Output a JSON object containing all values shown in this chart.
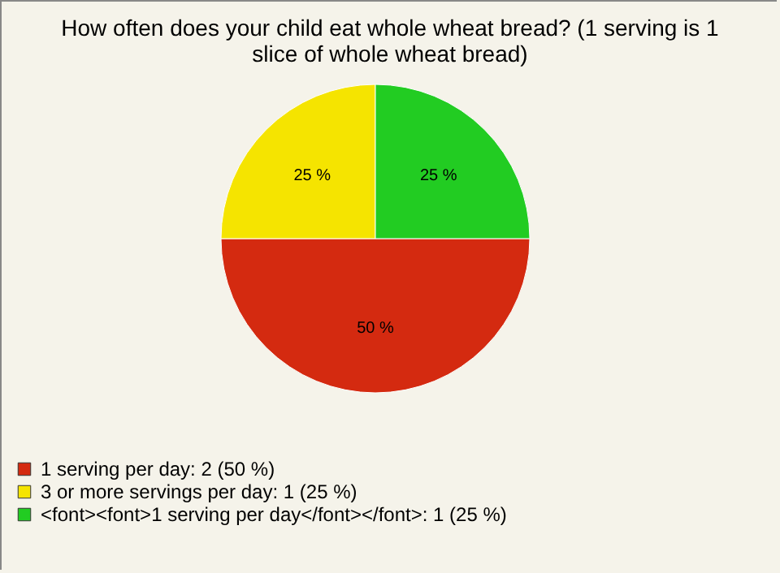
{
  "chart_data": {
    "type": "pie",
    "title": "How often does your child eat whole wheat bread? (1 serving is 1 slice of whole wheat bread)",
    "categories": [
      "1 serving per day: 2 (50 %)",
      "3 or more servings per day: 1 (25 %)",
      "<font><font>1 serving per day</font></font>: 1 (25 %)"
    ],
    "values": [
      50,
      25,
      25
    ],
    "colors": [
      "#d42a10",
      "#f5e400",
      "#22cc22"
    ],
    "value_labels": [
      "50 %",
      "25 %",
      "25 %"
    ],
    "legend": "bottom left"
  }
}
